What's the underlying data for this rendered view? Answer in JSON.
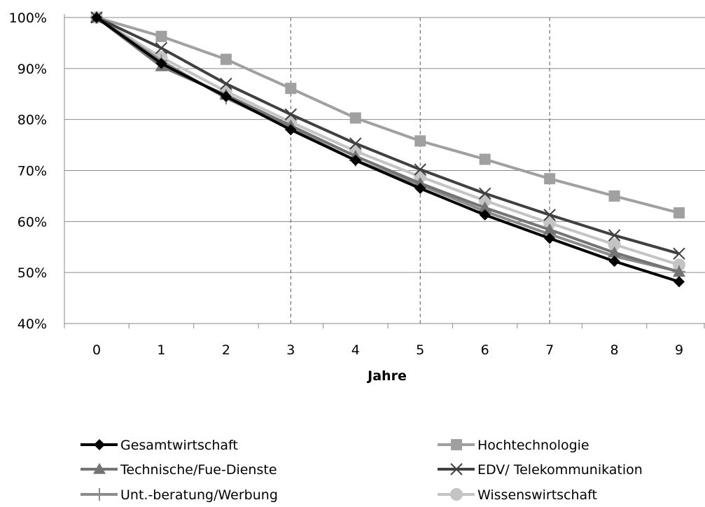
{
  "chart_data": {
    "type": "line",
    "title": "",
    "xlabel": "Jahre",
    "ylabel": "",
    "x": [
      0,
      1,
      2,
      3,
      4,
      5,
      6,
      7,
      8,
      9
    ],
    "y_ticks": [
      "40%",
      "50%",
      "60%",
      "70%",
      "80%",
      "90%",
      "100%"
    ],
    "ylim": [
      40,
      100
    ],
    "y_unit": "%",
    "grid": "horizontal",
    "reference_lines_x": [
      3,
      5,
      7
    ],
    "legend_position": "bottom",
    "series": [
      {
        "name": "Gesamtwirtschaft",
        "color": "#000000",
        "marker": "diamond",
        "values": [
          100,
          91,
          84.5,
          78,
          72,
          66.5,
          61.3,
          56.7,
          52.2,
          48.2
        ]
      },
      {
        "name": "Hochtechnologie",
        "color": "#a0a0a0",
        "marker": "square",
        "values": [
          100,
          96.3,
          91.8,
          86.1,
          80.3,
          75.8,
          72.2,
          68.4,
          65,
          61.7
        ]
      },
      {
        "name": "Technische/Fue-Dienste",
        "color": "#747474",
        "marker": "triangle",
        "values": [
          100,
          90.4,
          84.8,
          78.8,
          72.8,
          67.5,
          62.7,
          58.4,
          53.9,
          50.1
        ]
      },
      {
        "name": "EDV/ Telekommunikation",
        "color": "#404040",
        "marker": "x",
        "values": [
          100,
          94,
          87,
          81,
          75.3,
          70.2,
          65.5,
          61.3,
          57.3,
          53.7
        ]
      },
      {
        "name": "Unt.-beratung/Werbung",
        "color": "#8c8c8c",
        "marker": "plus",
        "values": [
          100,
          91.5,
          84.2,
          78.3,
          72,
          67.2,
          62,
          57.5,
          53.2,
          50.2
        ]
      },
      {
        "name": "Wissenswirtschaft",
        "color": "#c4c4c4",
        "marker": "circle",
        "values": [
          100,
          92.2,
          85.5,
          79.5,
          73.8,
          68.8,
          64.1,
          59.7,
          55.5,
          51.5
        ]
      }
    ]
  }
}
